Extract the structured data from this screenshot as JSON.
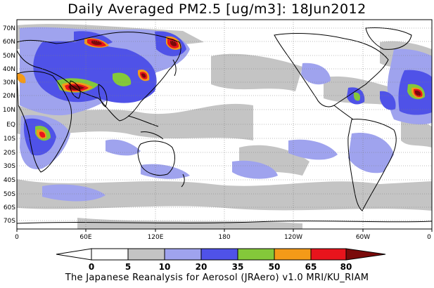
{
  "title": "Daily Averaged PM2.5 [ug/m3]: 18Jun2012",
  "footer": "The Japanese Reanalysis for Aerosol (JRAero) v1.0 MRI/KU_RIAM",
  "lat_labels": [
    "70N",
    "60N",
    "50N",
    "40N",
    "30N",
    "20N",
    "10N",
    "EQ",
    "10S",
    "20S",
    "30S",
    "40S",
    "50S",
    "60S",
    "70S"
  ],
  "lon_labels": [
    "0",
    "60E",
    "120E",
    "180",
    "120W",
    "60W",
    "0"
  ],
  "colorbar": {
    "ticks": [
      "0",
      "5",
      "10",
      "20",
      "35",
      "50",
      "65",
      "80"
    ],
    "colors": [
      "#ffffff",
      "#ffffff",
      "#c4c4c4",
      "#9fa3ee",
      "#4f52e8",
      "#84c83a",
      "#f49a18",
      "#e8141c",
      "#7a0a0a"
    ]
  },
  "colors": {
    "white": "#ffffff",
    "gray": "#c4c4c4",
    "lightblue": "#9fa3ee",
    "blue": "#4f52e8",
    "green": "#84c83a",
    "orange": "#f49a18",
    "red": "#e8141c",
    "darkred": "#7a0a0a"
  }
}
